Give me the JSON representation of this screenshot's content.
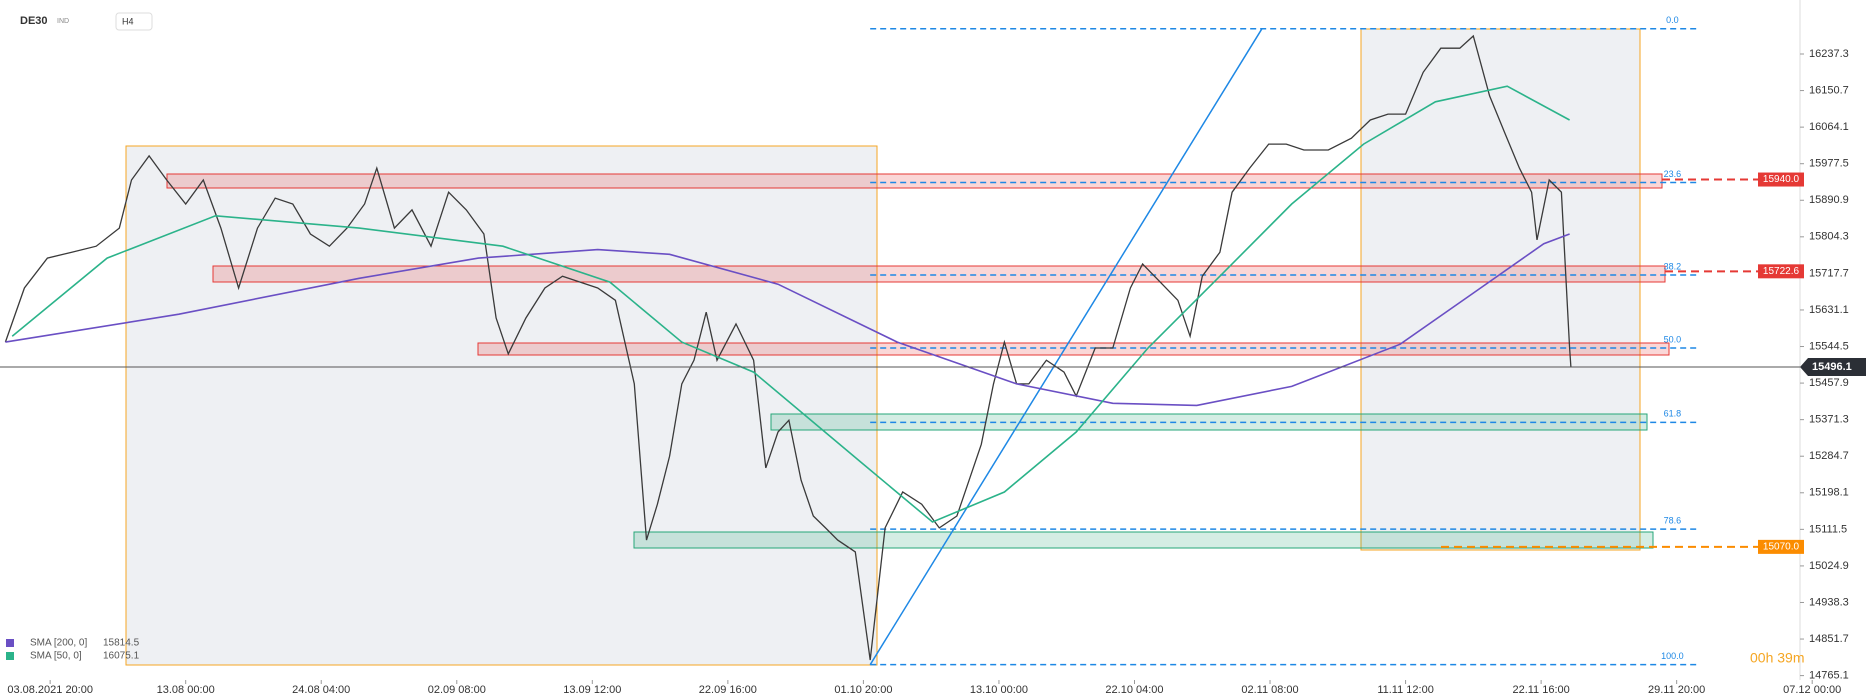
{
  "header": {
    "market": "IND",
    "timeframe": "H4"
  },
  "timer": "00h 39m",
  "chart_data": {
    "type": "line",
    "xlim": [
      -0.37,
      12.91
    ],
    "ylim": [
      14754.7,
      16365.2
    ],
    "xticks": [
      {
        "value": 0,
        "label": "03.08.2021  20:00"
      },
      {
        "value": 1,
        "label": "13.08  00:00"
      },
      {
        "value": 2,
        "label": "24.08  04:00"
      },
      {
        "value": 3,
        "label": "02.09  08:00"
      },
      {
        "value": 4,
        "label": "13.09  12:00"
      },
      {
        "value": 5,
        "label": "22.09  16:00"
      },
      {
        "value": 6,
        "label": "01.10  20:00"
      },
      {
        "value": 7,
        "label": "13.10  00:00"
      },
      {
        "value": 8,
        "label": "22.10  04:00"
      },
      {
        "value": 9,
        "label": "02.11  08:00"
      },
      {
        "value": 10,
        "label": "11.11  12:00"
      },
      {
        "value": 11,
        "label": "22.11  16:00"
      },
      {
        "value": 12,
        "label": "29.11  20:00"
      },
      {
        "value": 13,
        "label": "07.12  00:00"
      }
    ],
    "yticks": [
      16237.3,
      16150.7,
      16064.1,
      15977.5,
      15890.9,
      15804.3,
      15717.7,
      15631.1,
      15544.5,
      15457.9,
      15371.3,
      15284.7,
      15198.1,
      15111.5,
      15024.9,
      14938.3,
      14851.7,
      14765.1
    ],
    "series": [
      {
        "name": "DE30",
        "color": "#3a3a3a",
        "x": [
          -0.33,
          -0.19,
          -0.02,
          0.16,
          0.34,
          0.51,
          0.6,
          0.73,
          0.86,
          1.0,
          1.13,
          1.26,
          1.39,
          1.53,
          1.66,
          1.79,
          1.92,
          2.06,
          2.19,
          2.32,
          2.41,
          2.54,
          2.67,
          2.81,
          2.94,
          3.07,
          3.2,
          3.29,
          3.38,
          3.51,
          3.65,
          3.78,
          3.91,
          4.04,
          4.17,
          4.31,
          4.4,
          4.48,
          4.57,
          4.66,
          4.75,
          4.84,
          4.92,
          5.06,
          5.19,
          5.28,
          5.37,
          5.45,
          5.54,
          5.63,
          5.72,
          5.81,
          5.94,
          6.05,
          6.16,
          6.29,
          6.43,
          6.56,
          6.69,
          6.78,
          6.87,
          6.96,
          7.04,
          7.13,
          7.22,
          7.35,
          7.48,
          7.57,
          7.71,
          7.84,
          7.97,
          8.06,
          8.19,
          8.32,
          8.41,
          8.5,
          8.63,
          8.72,
          8.85,
          8.99,
          9.12,
          9.25,
          9.43,
          9.6,
          9.74,
          9.87,
          10.0,
          10.13,
          10.26,
          10.4,
          10.5,
          10.62,
          10.73,
          10.84,
          10.93,
          10.97,
          11.06,
          11.15,
          11.21,
          11.22
        ],
        "values": [
          15555,
          15683,
          15754,
          15768,
          15782,
          15825,
          15939,
          15996,
          15939,
          15882,
          15939,
          15825,
          15683,
          15825,
          15896,
          15882,
          15811,
          15782,
          15825,
          15882,
          15967,
          15825,
          15868,
          15782,
          15910,
          15868,
          15811,
          15612,
          15527,
          15612,
          15683,
          15711,
          15697,
          15683,
          15654,
          15456,
          15086,
          15171,
          15285,
          15456,
          15512,
          15626,
          15512,
          15598,
          15512,
          15257,
          15342,
          15370,
          15228,
          15143,
          15115,
          15086,
          15058,
          14802,
          15115,
          15200,
          15171,
          15115,
          15143,
          15228,
          15313,
          15456,
          15555,
          15456,
          15456,
          15512,
          15484,
          15427,
          15541,
          15541,
          15683,
          15740,
          15697,
          15654,
          15569,
          15711,
          15768,
          15910,
          15967,
          16024,
          16024,
          16010,
          16010,
          16038,
          16081,
          16095,
          16095,
          16194,
          16251,
          16251,
          16280,
          16138,
          16052,
          15967,
          15910,
          15797,
          15939,
          15910,
          15541,
          15496
        ]
      },
      {
        "name": "SMA [200, 0]",
        "last_value": 15814.5,
        "color": "#6a4fc4",
        "x": [
          -0.33,
          0.95,
          2.28,
          3.16,
          4.04,
          4.57,
          5.37,
          6.25,
          7.13,
          7.84,
          8.46,
          9.16,
          9.96,
          10.49,
          11.02,
          11.21
        ],
        "values": [
          15555,
          15621,
          15706,
          15754,
          15774,
          15763,
          15692,
          15555,
          15456,
          15410,
          15405,
          15450,
          15550,
          15669,
          15788,
          15811
        ]
      },
      {
        "name": "SMA [50, 0]",
        "last_value": 16075.1,
        "color": "#2bb38a",
        "x": [
          -0.28,
          0.42,
          1.22,
          2.28,
          3.34,
          4.13,
          4.66,
          5.19,
          5.98,
          6.51,
          7.04,
          7.57,
          8.1,
          8.63,
          9.16,
          9.69,
          10.22,
          10.75,
          11.21
        ],
        "values": [
          15569,
          15754,
          15854,
          15825,
          15782,
          15697,
          15555,
          15484,
          15271,
          15129,
          15200,
          15342,
          15541,
          15711,
          15882,
          16024,
          16124,
          16161,
          16081
        ]
      }
    ],
    "fibonacci": {
      "color": "#1e88e5",
      "x_range": [
        6.05,
        12.16
      ],
      "trend_line": {
        "x": [
          6.05,
          8.94
        ],
        "values": [
          14791,
          16297
        ]
      },
      "levels": [
        {
          "label": "0.0",
          "price": 16297
        },
        {
          "label": "23.6",
          "price": 15933
        },
        {
          "label": "38.2",
          "price": 15714
        },
        {
          "label": "50.0",
          "price": 15541
        },
        {
          "label": "61.8",
          "price": 15365
        },
        {
          "label": "78.6",
          "price": 15112
        },
        {
          "label": "100.0",
          "price": 14791
        }
      ]
    },
    "levels": [
      {
        "value": 15940,
        "label": "15940.0",
        "color": "#e53935"
      },
      {
        "value": 15722.6,
        "color": "#e53935"
      },
      {
        "value": 15070,
        "label": "15070.0",
        "color": "#fb8c00"
      }
    ],
    "last_price": {
      "value": 15496.1,
      "color": "#2b2f36"
    }
  }
}
